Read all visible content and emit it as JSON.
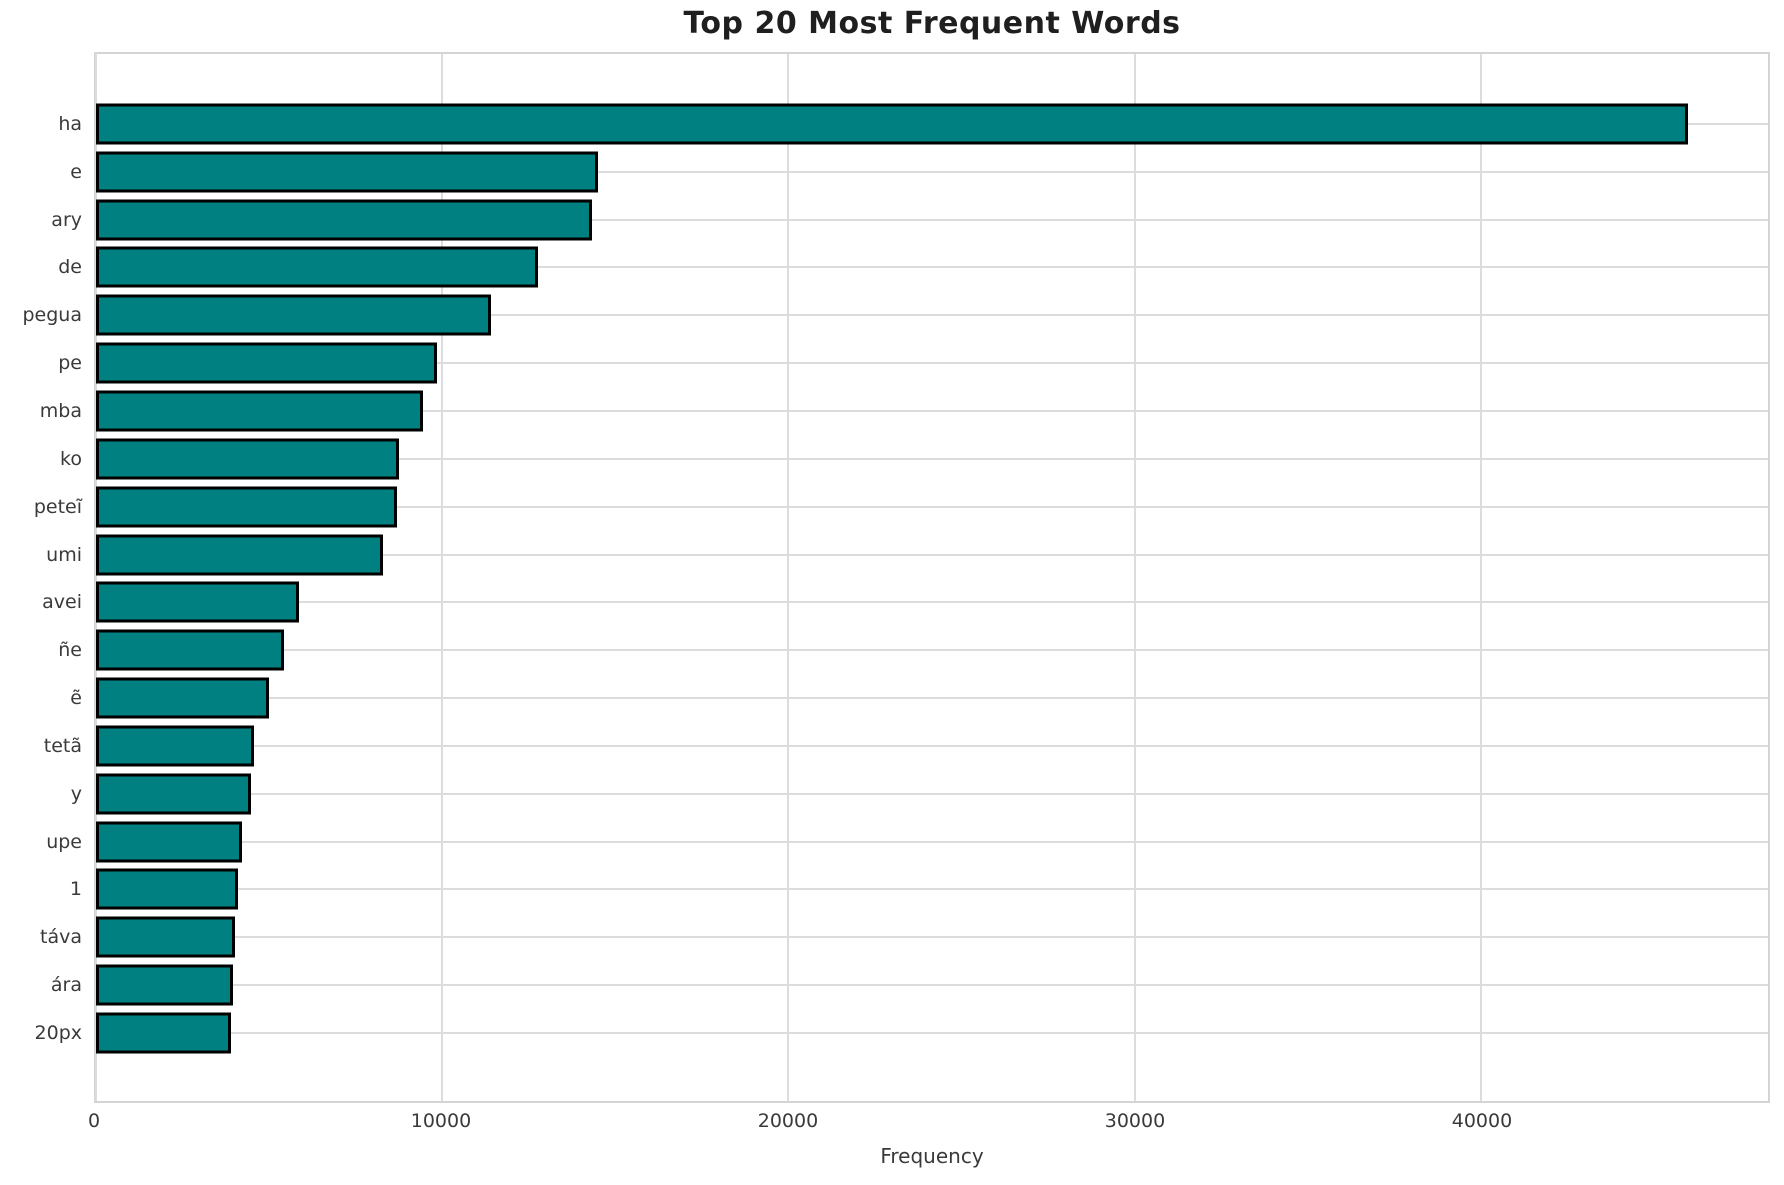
{
  "chart_data": {
    "type": "bar",
    "orientation": "horizontal",
    "title": "Top 20 Most Frequent Words",
    "xlabel": "Frequency",
    "ylabel": "",
    "categories": [
      "ha",
      "e",
      "ary",
      "de",
      "pegua",
      "pe",
      "mba",
      "ko",
      "peteĩ",
      "umi",
      "avei",
      "ñe",
      "ẽ",
      "tetã",
      "y",
      "upe",
      "1",
      "táva",
      "ára",
      "20px"
    ],
    "values": [
      46000,
      14500,
      14340,
      12760,
      11410,
      9860,
      9440,
      8740,
      8690,
      8290,
      5870,
      5430,
      5010,
      4570,
      4470,
      4230,
      4090,
      4010,
      3970,
      3900
    ],
    "xticks": [
      0,
      10000,
      20000,
      30000,
      40000
    ],
    "xlim": [
      0,
      48300
    ],
    "grid": true,
    "legend_position": "none",
    "bar_color": "#008080",
    "bar_edge_color": "#000000",
    "grid_color": "#dcdcdc",
    "spine_color": "#d4d4d4",
    "background_color": "#ffffff",
    "title_color": "#1f1f1f",
    "tick_color": "#3a3a3a"
  }
}
